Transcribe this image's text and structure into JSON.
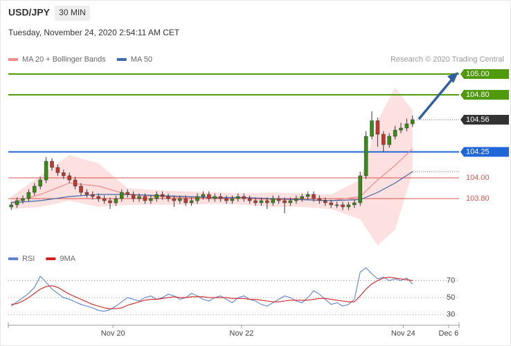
{
  "header": {
    "symbol": "USD/JPY",
    "interval": "30 MIN",
    "timestamp": "Tuesday, November 24, 2020 2:54:11 AM CET",
    "source": "Research © 2020 Trading Central"
  },
  "chart_data": [
    {
      "type": "candlestick",
      "xlim": [
        -0.5,
        77
      ],
      "ylim": [
        103.3,
        105.3
      ],
      "ohlc": {
        "open": [
          103.72,
          103.74,
          103.78,
          103.8,
          103.86,
          103.92,
          103.98,
          104.16,
          104.1,
          104.05,
          104.02,
          103.98,
          103.92,
          103.86,
          103.84,
          103.82,
          103.8,
          103.78,
          103.76,
          103.8,
          103.86,
          103.84,
          103.8,
          103.82,
          103.78,
          103.8,
          103.84,
          103.82,
          103.8,
          103.78,
          103.8,
          103.76,
          103.78,
          103.82,
          103.84,
          103.8,
          103.82,
          103.8,
          103.78,
          103.8,
          103.82,
          103.8,
          103.78,
          103.76,
          103.78,
          103.76,
          103.8,
          103.78,
          103.76,
          103.78,
          103.8,
          103.82,
          103.84,
          103.8,
          103.78,
          103.76,
          103.74,
          103.74,
          103.72,
          103.74,
          103.76,
          104.02,
          104.4,
          104.55,
          104.42,
          104.32,
          104.4,
          104.46,
          104.48,
          104.52
        ],
        "high": [
          103.77,
          103.81,
          103.83,
          103.89,
          103.95,
          104.01,
          104.2,
          104.19,
          104.13,
          104.08,
          104.05,
          104.01,
          103.95,
          103.89,
          103.87,
          103.85,
          103.83,
          103.81,
          103.83,
          103.89,
          103.89,
          103.87,
          103.85,
          103.85,
          103.83,
          103.87,
          103.87,
          103.85,
          103.83,
          103.83,
          103.83,
          103.81,
          103.85,
          103.87,
          103.87,
          103.85,
          103.85,
          103.83,
          103.83,
          103.85,
          103.85,
          103.83,
          103.81,
          103.81,
          103.81,
          103.83,
          103.83,
          103.81,
          103.81,
          103.83,
          103.85,
          103.87,
          103.87,
          103.83,
          103.81,
          103.79,
          103.77,
          103.77,
          103.77,
          103.79,
          104.06,
          104.45,
          104.64,
          104.58,
          104.45,
          104.43,
          104.5,
          104.53,
          104.57,
          104.6
        ],
        "low": [
          103.69,
          103.71,
          103.75,
          103.77,
          103.83,
          103.89,
          103.95,
          104.07,
          104.02,
          103.99,
          103.95,
          103.89,
          103.83,
          103.81,
          103.79,
          103.77,
          103.75,
          103.7,
          103.73,
          103.77,
          103.81,
          103.77,
          103.77,
          103.75,
          103.75,
          103.77,
          103.79,
          103.77,
          103.72,
          103.75,
          103.73,
          103.73,
          103.75,
          103.79,
          103.77,
          103.77,
          103.77,
          103.75,
          103.75,
          103.77,
          103.77,
          103.75,
          103.73,
          103.73,
          103.7,
          103.73,
          103.75,
          103.66,
          103.73,
          103.75,
          103.77,
          103.79,
          103.77,
          103.75,
          103.73,
          103.71,
          103.71,
          103.69,
          103.69,
          103.71,
          103.73,
          103.99,
          104.37,
          104.3,
          104.25,
          104.29,
          104.37,
          104.43,
          104.45,
          104.49
        ],
        "close": [
          103.74,
          103.78,
          103.8,
          103.86,
          103.92,
          103.98,
          104.16,
          104.1,
          104.05,
          104.02,
          103.98,
          103.92,
          103.86,
          103.84,
          103.82,
          103.8,
          103.78,
          103.76,
          103.8,
          103.86,
          103.84,
          103.8,
          103.82,
          103.78,
          103.8,
          103.84,
          103.82,
          103.8,
          103.78,
          103.8,
          103.76,
          103.78,
          103.82,
          103.84,
          103.8,
          103.82,
          103.8,
          103.78,
          103.8,
          103.82,
          103.8,
          103.78,
          103.76,
          103.78,
          103.76,
          103.8,
          103.78,
          103.76,
          103.78,
          103.8,
          103.82,
          103.84,
          103.8,
          103.78,
          103.76,
          103.74,
          103.74,
          103.72,
          103.74,
          103.76,
          104.02,
          104.4,
          104.55,
          104.42,
          104.32,
          104.4,
          104.46,
          104.48,
          104.52,
          104.56
        ],
        "up_color": "#3a8a1a",
        "down_color": "#c0392b"
      },
      "series": [
        {
          "name": "MA 20 + Bollinger Bands",
          "color": "#f08c8c",
          "band_color": "#fde0e0",
          "x": [
            0,
            5,
            10,
            15,
            20,
            25,
            30,
            35,
            40,
            45,
            50,
            55,
            60,
            63,
            66,
            69
          ],
          "values": [
            103.76,
            103.84,
            103.95,
            103.92,
            103.84,
            103.82,
            103.81,
            103.81,
            103.8,
            103.79,
            103.79,
            103.78,
            103.82,
            103.98,
            104.12,
            104.28
          ],
          "upper": [
            103.82,
            104.02,
            104.22,
            104.14,
            103.9,
            103.88,
            103.87,
            103.86,
            103.85,
            103.86,
            103.85,
            103.84,
            103.98,
            104.55,
            104.87,
            104.65
          ],
          "lower": [
            103.7,
            103.72,
            103.78,
            103.72,
            103.74,
            103.74,
            103.74,
            103.75,
            103.74,
            103.72,
            103.72,
            103.7,
            103.6,
            103.35,
            103.5,
            104.05
          ]
        },
        {
          "name": "MA 50",
          "color": "#3d6aa8",
          "x": [
            0,
            5,
            10,
            15,
            20,
            25,
            30,
            35,
            40,
            45,
            50,
            55,
            60,
            63,
            66,
            69
          ],
          "values": [
            103.76,
            103.78,
            103.82,
            103.84,
            103.84,
            103.83,
            103.82,
            103.81,
            103.81,
            103.8,
            103.79,
            103.78,
            103.79,
            103.86,
            103.95,
            104.06
          ]
        }
      ],
      "levels": [
        {
          "value": 105,
          "label": "105.00",
          "color": "#4f9a0d",
          "boxed": true,
          "dotted": false
        },
        {
          "value": 104.8,
          "label": "104.80",
          "color": "#4f9a0d",
          "boxed": true,
          "dotted": false
        },
        {
          "value": 104.56,
          "label": "104.56",
          "color": "#333333",
          "boxed": true,
          "dotted": true
        },
        {
          "value": 104.25,
          "label": "104.25",
          "color": "#1f66d9",
          "boxed": true,
          "dotted": false
        },
        {
          "value": 104,
          "label": "104.00",
          "color": "#d9534f",
          "boxed": false,
          "dotted": false
        },
        {
          "value": 103.8,
          "label": "103.80",
          "color": "#d9534f",
          "boxed": false,
          "dotted": false
        }
      ]
    },
    {
      "type": "line",
      "xlim": [
        -0.5,
        77
      ],
      "ylim": [
        20,
        85
      ],
      "yticks": [
        30,
        50,
        70
      ],
      "grid": true,
      "xticks": [
        {
          "value": 17.5,
          "label": "Nov 20"
        },
        {
          "value": 39.6,
          "label": "Nov 22"
        },
        {
          "value": 67.4,
          "label": "Nov 24"
        },
        {
          "value": 75.2,
          "label": "Dec 6"
        }
      ],
      "series": [
        {
          "name": "RSI",
          "color": "#5b82d6",
          "values": [
            40,
            45,
            50,
            55,
            62,
            75,
            68,
            60,
            55,
            50,
            48,
            45,
            42,
            40,
            38,
            35,
            34,
            36,
            40,
            45,
            50,
            48,
            46,
            50,
            52,
            48,
            50,
            54,
            52,
            48,
            50,
            55,
            52,
            48,
            46,
            50,
            52,
            48,
            44,
            50,
            52,
            48,
            46,
            42,
            40,
            44,
            48,
            52,
            50,
            46,
            44,
            50,
            58,
            54,
            48,
            42,
            44,
            40,
            42,
            48,
            80,
            85,
            78,
            72,
            74,
            70,
            72,
            70,
            73,
            66
          ]
        },
        {
          "name": "9MA",
          "color": "#d42020",
          "values": [
            42,
            43,
            46,
            50,
            55,
            60,
            63,
            64,
            62,
            58,
            54,
            51,
            48,
            45,
            42,
            40,
            38,
            37,
            37,
            38,
            41,
            43,
            45,
            47,
            48,
            48,
            49,
            50,
            51,
            50,
            50,
            51,
            51,
            51,
            50,
            50,
            50,
            50,
            49,
            49,
            49,
            48,
            48,
            47,
            46,
            45,
            45,
            46,
            47,
            47,
            47,
            47,
            48,
            49,
            49,
            48,
            47,
            46,
            45,
            45,
            52,
            60,
            66,
            70,
            73,
            74,
            73,
            72,
            71,
            70
          ]
        }
      ]
    }
  ]
}
